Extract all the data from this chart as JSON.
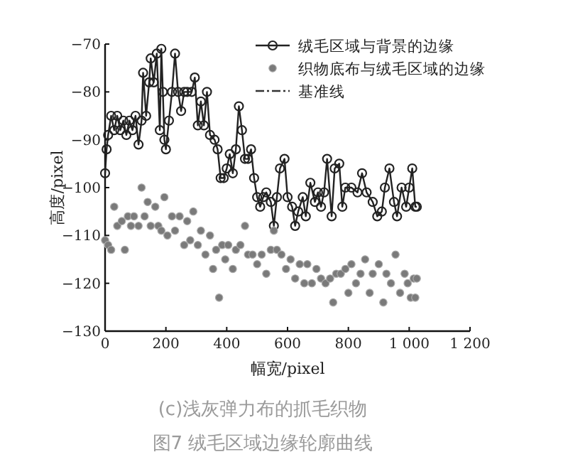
{
  "chart_data": {
    "type": "line",
    "xlabel": "幅宽/pixel",
    "ylabel": "高度/pixel",
    "xlim": [
      0,
      1200
    ],
    "ylim": [
      -130,
      -70
    ],
    "xticks": [
      0,
      200,
      400,
      600,
      800,
      {
        "value": 1000,
        "label": "1 000"
      },
      {
        "value": 1200,
        "label": "1 200"
      }
    ],
    "yticks": [
      -130,
      -120,
      -110,
      -100,
      -90,
      -80,
      -70
    ],
    "legend": "top right",
    "grid": false,
    "annotations": [
      "(c)浅灰弹力布的抓毛织物",
      "图7 绒毛区域边缘轮廓曲线"
    ],
    "series": [
      {
        "name": "绒毛区域与背景的边缘",
        "marker": "circle",
        "line_style": "solid",
        "color": "#222222",
        "x": [
          0,
          5,
          10,
          20,
          30,
          40,
          50,
          60,
          70,
          80,
          90,
          100,
          110,
          120,
          125,
          135,
          145,
          150,
          160,
          170,
          180,
          185,
          190,
          195,
          200,
          210,
          220,
          230,
          240,
          250,
          260,
          270,
          285,
          295,
          305,
          315,
          325,
          335,
          345,
          360,
          370,
          380,
          390,
          400,
          410,
          420,
          430,
          440,
          450,
          460,
          470,
          480,
          490,
          500,
          510,
          520,
          530,
          545,
          555,
          565,
          575,
          590,
          600,
          615,
          625,
          635,
          650,
          660,
          675,
          690,
          700,
          710,
          720,
          730,
          745,
          755,
          770,
          780,
          790,
          810,
          830,
          845,
          860,
          880,
          895,
          910,
          920,
          935,
          950,
          960,
          975,
          990,
          1000,
          1010,
          1020,
          1025
        ],
        "values": [
          -97,
          -92,
          -89,
          -85,
          -88,
          -85,
          -88,
          -86,
          -89,
          -86,
          -88,
          -85,
          -91,
          -86,
          -76,
          -85,
          -78,
          -73,
          -78,
          -72,
          -88,
          -71,
          -80,
          -90,
          -92,
          -86,
          -80,
          -72,
          -80,
          -84,
          -80,
          -80,
          -80,
          -77,
          -87,
          -82,
          -87,
          -80,
          -89,
          -90,
          -92,
          -98,
          -98,
          -96,
          -93,
          -97,
          -92,
          -83,
          -88,
          -94,
          -94,
          -92,
          -98,
          -102,
          -104,
          -102,
          -101,
          -103,
          -108,
          -102,
          -96,
          -94,
          -102,
          -104,
          -108,
          -105,
          -102,
          -106,
          -99,
          -103,
          -101,
          -104,
          -101,
          -94,
          -106,
          -96,
          -95,
          -104,
          -100,
          -100,
          -101,
          -97,
          -101,
          -103,
          -106,
          -105,
          -100,
          -96,
          -103,
          -106,
          -100,
          -104,
          -100,
          -96,
          -104,
          -104
        ]
      },
      {
        "name": "织物底布与绒毛区域的边缘",
        "type": "scatter",
        "marker": "circle",
        "color": "#7a7a7a",
        "x": [
          0,
          10,
          20,
          30,
          40,
          55,
          65,
          75,
          85,
          95,
          110,
          120,
          130,
          140,
          150,
          165,
          175,
          185,
          195,
          205,
          220,
          230,
          245,
          260,
          270,
          280,
          290,
          305,
          315,
          330,
          345,
          355,
          365,
          375,
          385,
          395,
          405,
          420,
          430,
          445,
          460,
          470,
          485,
          500,
          515,
          530,
          545,
          555,
          565,
          580,
          595,
          610,
          625,
          640,
          655,
          665,
          680,
          695,
          710,
          725,
          740,
          750,
          760,
          775,
          790,
          800,
          810,
          825,
          840,
          855,
          870,
          880,
          900,
          915,
          925,
          940,
          955,
          970,
          985,
          995,
          1005,
          1015,
          1020,
          1025
        ],
        "values": [
          -111,
          -112,
          -113,
          -104,
          -108,
          -107,
          -113,
          -106,
          -108,
          -106,
          -108,
          -100,
          -106,
          -103,
          -108,
          -104,
          -108,
          -109,
          -102,
          -110,
          -106,
          -109,
          -106,
          -112,
          -107,
          -111,
          -105,
          -112,
          -109,
          -114,
          -110,
          -117,
          -113,
          -123,
          -112,
          -115,
          -112,
          -117,
          -113,
          -112,
          -108,
          -114,
          -114,
          -116,
          -114,
          -118,
          -113,
          -109,
          -113,
          -114,
          -117,
          -115,
          -119,
          -116,
          -120,
          -116,
          -120,
          -117,
          -119,
          -120,
          -119,
          -124,
          -118,
          -118,
          -117,
          -122,
          -116,
          -120,
          -118,
          -115,
          -122,
          -118,
          -116,
          -124,
          -118,
          -120,
          -114,
          -122,
          -118,
          -120,
          -123,
          -119,
          -123,
          -119
        ]
      },
      {
        "name": "基准线",
        "type": "line",
        "marker": "none",
        "line_style": "dashed",
        "color": "#333333"
      }
    ]
  }
}
